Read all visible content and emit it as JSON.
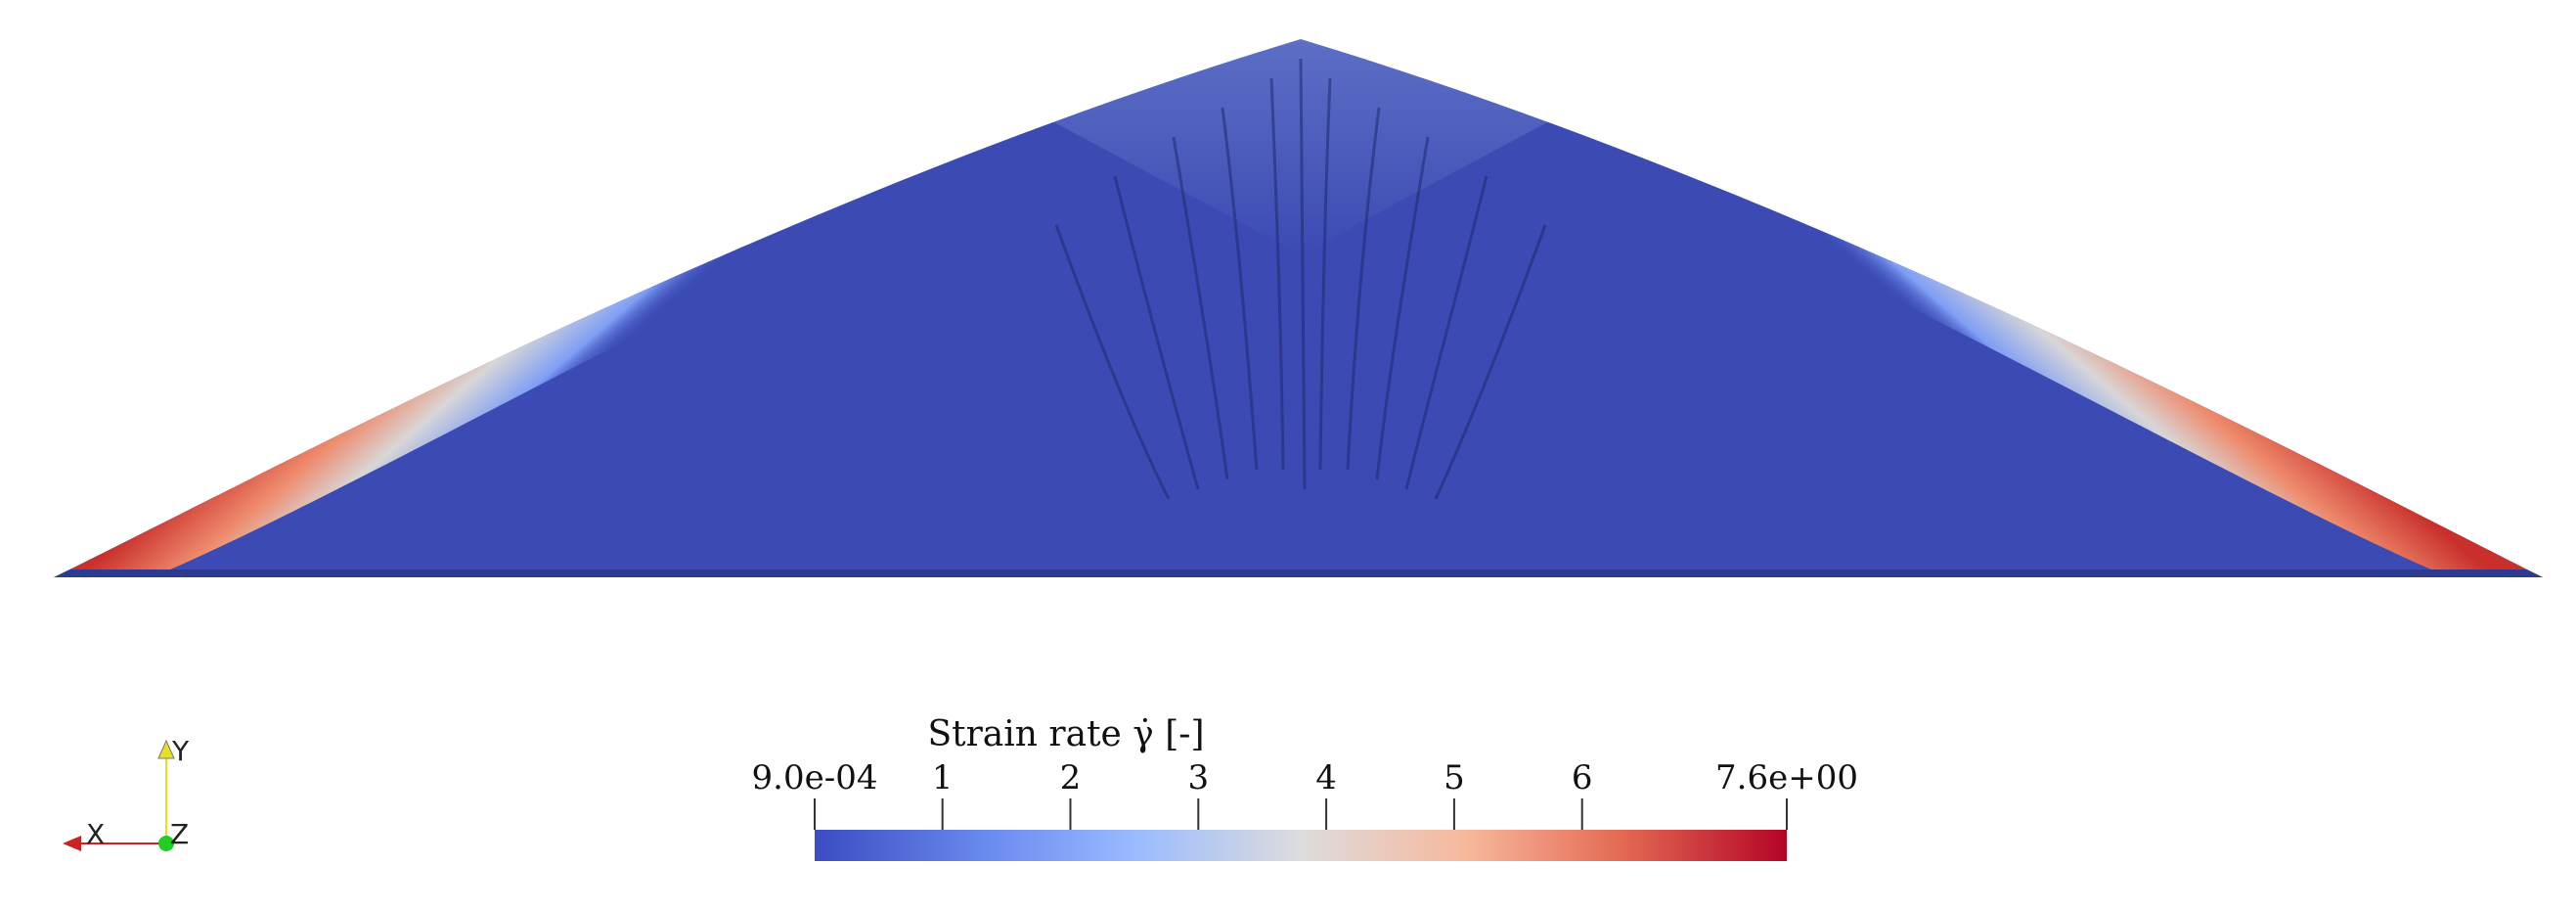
{
  "scene": {
    "description_field": "strain rate",
    "colors": {
      "low": "#3b4cc0",
      "mid": "#dddddd",
      "high": "#b40426",
      "background": "#ffffff"
    }
  },
  "colorbar": {
    "title": "Strain rate γ̇ [-]",
    "min_label": "9.0e-04",
    "max_label": "7.6e+00",
    "min_value": 0.0009,
    "max_value": 7.6,
    "ticks": [
      {
        "value": 0.0009,
        "label": "9.0e-04"
      },
      {
        "value": 1,
        "label": "1"
      },
      {
        "value": 2,
        "label": "2"
      },
      {
        "value": 3,
        "label": "3"
      },
      {
        "value": 4,
        "label": "4"
      },
      {
        "value": 5,
        "label": "5"
      },
      {
        "value": 6,
        "label": "6"
      },
      {
        "value": 7.6,
        "label": "7.6e+00"
      }
    ]
  },
  "axes_triad": {
    "x_label": "X",
    "y_label": "Y",
    "z_label": "Z",
    "x_color": "#cc2222",
    "y_color": "#e6e020",
    "z_color": "#22cc22"
  }
}
